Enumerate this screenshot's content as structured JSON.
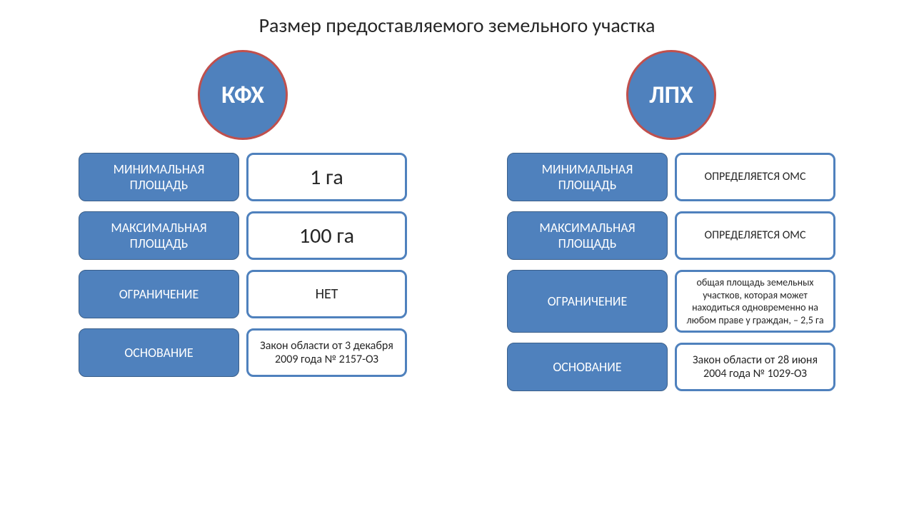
{
  "title": "Размер предоставляемого земельного участка",
  "colors": {
    "primary": "#4f81bd",
    "primary_border": "#3a5f8a",
    "circle_border": "#c0504d",
    "white": "#ffffff",
    "text_dark": "#262626"
  },
  "columns": [
    {
      "circle_label": "КФХ",
      "circle_fontsize": 34,
      "rows": [
        {
          "label": "МИНИМАЛЬНАЯ ПЛОЩАДЬ",
          "value": "1 га",
          "value_class": "value-big"
        },
        {
          "label": "МАКСИМАЛЬНАЯ ПЛОЩАДЬ",
          "value": "100 га",
          "value_class": "value-big"
        },
        {
          "label": "ОГРАНИЧЕНИЕ",
          "value": "НЕТ",
          "value_class": "value-med"
        },
        {
          "label": "ОСНОВАНИЕ",
          "value": "Закон области от 3 декабря 2009 года № 2157-ОЗ",
          "value_class": "value-sm"
        }
      ]
    },
    {
      "circle_label": "ЛПХ",
      "circle_fontsize": 34,
      "rows": [
        {
          "label": "МИНИМАЛЬНАЯ ПЛОЩАДЬ",
          "value": "ОПРЕДЕЛЯЕТСЯ  ОМС",
          "value_class": "value-sm"
        },
        {
          "label": "МАКСИМАЛЬНАЯ ПЛОЩАДЬ",
          "value": "ОПРЕДЕЛЯЕТСЯ  ОМС",
          "value_class": "value-sm"
        },
        {
          "label": "ОГРАНИЧЕНИЕ",
          "value": "общая площадь земельных участков, которая может находиться одновременно на любом праве у граждан, – 2,5 га",
          "value_class": "value-xs"
        },
        {
          "label": "ОСНОВАНИЕ",
          "value": "Закон области от 28 июня 2004 года № 1029-ОЗ",
          "value_class": "value-sm"
        }
      ]
    }
  ]
}
